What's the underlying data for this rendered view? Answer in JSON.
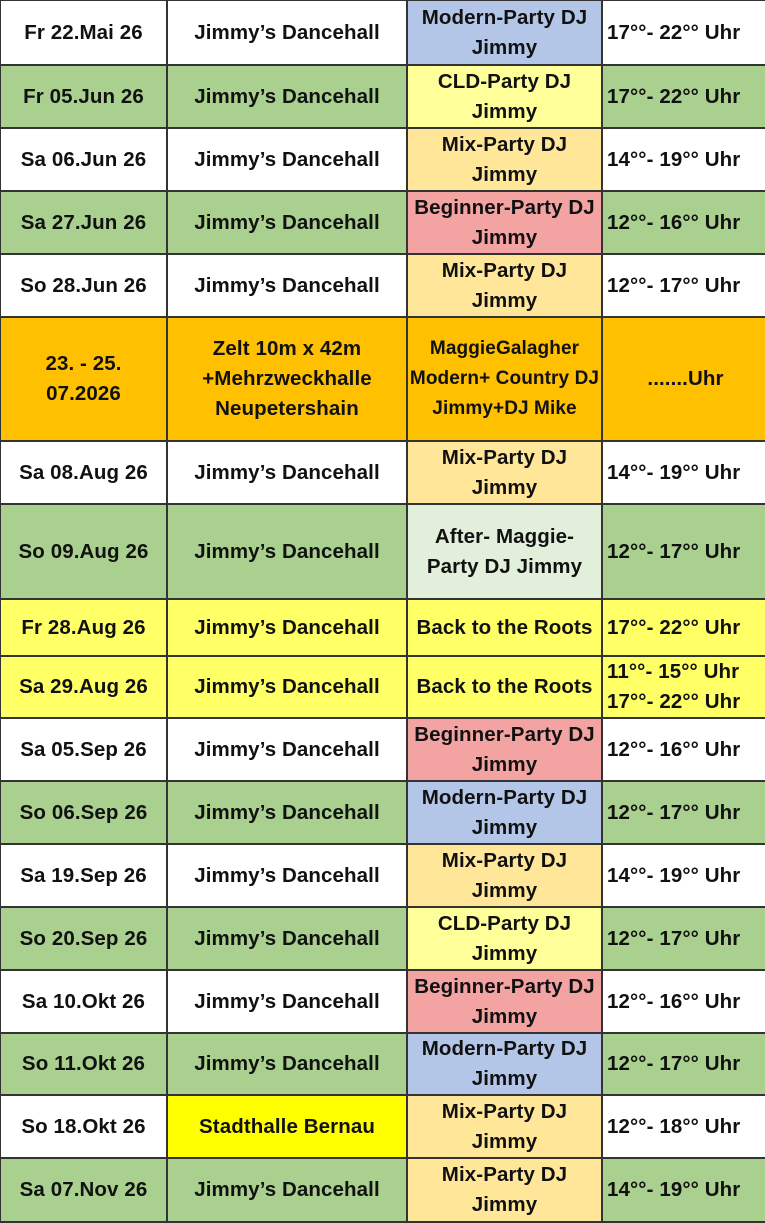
{
  "colors": {
    "white": "#ffffff",
    "green": "#a9d08e",
    "orange": "#ffc000",
    "yellow": "#ffff66",
    "bright_yellow": "#ffff00",
    "modern": "#b4c6e7",
    "cld": "#ffff99",
    "mix": "#ffe699",
    "beginner": "#f4a3a3",
    "after": "#e2efda"
  },
  "rows": [
    {
      "date": "Fr 22.Mai 26",
      "venue": "Jimmy’s Dancehall",
      "event": "Modern-Party DJ Jimmy",
      "time": "17°°- 22°° Uhr",
      "row_color": "white",
      "event_color": "modern"
    },
    {
      "date": "Fr 05.Jun 26",
      "venue": "Jimmy’s Dancehall",
      "event": "CLD-Party DJ Jimmy",
      "time": "17°°- 22°° Uhr",
      "row_color": "green",
      "event_color": "cld"
    },
    {
      "date": "Sa 06.Jun 26",
      "venue": "Jimmy’s Dancehall",
      "event": "Mix-Party DJ Jimmy",
      "time": "14°°- 19°° Uhr",
      "row_color": "white",
      "event_color": "mix"
    },
    {
      "date": "Sa 27.Jun 26",
      "venue": "Jimmy’s Dancehall",
      "event": "Beginner-Party DJ Jimmy",
      "time": "12°°- 16°° Uhr",
      "row_color": "green",
      "event_color": "beginner"
    },
    {
      "date": "So 28.Jun 26",
      "venue": "Jimmy’s Dancehall",
      "event": "Mix-Party DJ Jimmy",
      "time": "12°°- 17°° Uhr",
      "row_color": "white",
      "event_color": "mix"
    },
    {
      "date": "23. - 25. 07.2026",
      "venue": "Zelt 10m x 42m +Mehrzweckhalle Neupetershain",
      "event": "MaggieGalagher Modern+ Country DJ Jimmy+DJ Mike",
      "time": ".......Uhr",
      "row_color": "orange",
      "event_color": "orange"
    },
    {
      "date": "Sa 08.Aug 26",
      "venue": "Jimmy’s Dancehall",
      "event": "Mix-Party DJ Jimmy",
      "time": "14°°- 19°° Uhr",
      "row_color": "white",
      "event_color": "mix"
    },
    {
      "date": "So 09.Aug 26",
      "venue": "Jimmy’s Dancehall",
      "event": "After- Maggie-Party DJ Jimmy",
      "time": "12°°- 17°° Uhr",
      "row_color": "green",
      "event_color": "after"
    },
    {
      "date": "Fr 28.Aug 26",
      "venue": "Jimmy’s Dancehall",
      "event": "Back to the Roots",
      "time": "17°°- 22°° Uhr",
      "row_color": "yellow",
      "event_color": "yellow"
    },
    {
      "date": "Sa 29.Aug 26",
      "venue": "Jimmy’s Dancehall",
      "event": "Back to the Roots",
      "time": "11°°- 15°° Uhr\n17°°- 22°° Uhr",
      "row_color": "yellow",
      "event_color": "yellow"
    },
    {
      "date": "Sa 05.Sep 26",
      "venue": "Jimmy’s Dancehall",
      "event": "Beginner-Party DJ Jimmy",
      "time": "12°°- 16°° Uhr",
      "row_color": "white",
      "event_color": "beginner"
    },
    {
      "date": "So 06.Sep 26",
      "venue": "Jimmy’s Dancehall",
      "event": "Modern-Party DJ Jimmy",
      "time": "12°°- 17°° Uhr",
      "row_color": "green",
      "event_color": "modern"
    },
    {
      "date": "Sa 19.Sep 26",
      "venue": "Jimmy’s Dancehall",
      "event": "Mix-Party DJ Jimmy",
      "time": "14°°- 19°° Uhr",
      "row_color": "white",
      "event_color": "mix"
    },
    {
      "date": "So 20.Sep 26",
      "venue": "Jimmy’s Dancehall",
      "event": "CLD-Party DJ Jimmy",
      "time": "12°°- 17°° Uhr",
      "row_color": "green",
      "event_color": "cld"
    },
    {
      "date": "Sa 10.Okt 26",
      "venue": "Jimmy’s Dancehall",
      "event": "Beginner-Party DJ Jimmy",
      "time": "12°°- 16°° Uhr",
      "row_color": "white",
      "event_color": "beginner"
    },
    {
      "date": "So 11.Okt 26",
      "venue": "Jimmy’s Dancehall",
      "event": "Modern-Party DJ Jimmy",
      "time": "12°°- 17°° Uhr",
      "row_color": "green",
      "event_color": "modern"
    },
    {
      "date": "So 18.Okt 26",
      "venue": "Stadthalle Bernau",
      "event": "Mix-Party DJ Jimmy",
      "time": "12°°- 18°° Uhr",
      "row_color": "white",
      "venue_color": "bright_yellow",
      "event_color": "mix"
    },
    {
      "date": "Sa 07.Nov 26",
      "venue": "Jimmy’s Dancehall",
      "event": "Mix-Party DJ Jimmy",
      "time": "14°°- 19°° Uhr",
      "row_color": "green",
      "event_color": "mix"
    }
  ]
}
